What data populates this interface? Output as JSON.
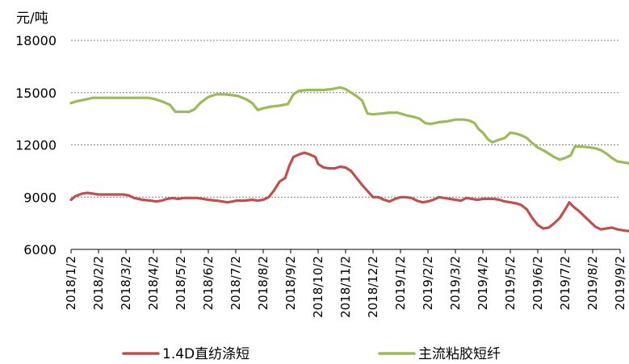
{
  "chart_data": {
    "type": "line",
    "unit_label": "元/吨",
    "ylim": [
      6000,
      18000
    ],
    "yticks": [
      6000,
      9000,
      12000,
      15000,
      18000
    ],
    "grid": true,
    "legend_position": "bottom",
    "xticks": [
      "2018/1/2",
      "2018/2/2",
      "2018/3/2",
      "2018/4/2",
      "2018/5/2",
      "2018/6/2",
      "2018/7/2",
      "2018/8/2",
      "2018/9/2",
      "2018/10/2",
      "2018/11/2",
      "2018/12/2",
      "2019/1/2",
      "2019/2/2",
      "2019/3/2",
      "2019/4/2",
      "2019/5/2",
      "2019/6/2",
      "2019/7/2",
      "2019/8/2",
      "2019/9/2"
    ],
    "series": [
      {
        "name": "1.4D直纺涤短",
        "color": "#c0504d",
        "points": [
          [
            0,
            8850
          ],
          [
            0.15,
            9050
          ],
          [
            0.4,
            9200
          ],
          [
            0.6,
            9250
          ],
          [
            0.8,
            9200
          ],
          [
            1,
            9150
          ],
          [
            1.3,
            9150
          ],
          [
            1.6,
            9150
          ],
          [
            1.9,
            9150
          ],
          [
            2.1,
            9100
          ],
          [
            2.3,
            8950
          ],
          [
            2.6,
            8850
          ],
          [
            2.9,
            8800
          ],
          [
            3.1,
            8750
          ],
          [
            3.3,
            8800
          ],
          [
            3.5,
            8900
          ],
          [
            3.7,
            8950
          ],
          [
            3.9,
            8900
          ],
          [
            4.1,
            8950
          ],
          [
            4.3,
            8950
          ],
          [
            4.6,
            8950
          ],
          [
            4.8,
            8900
          ],
          [
            5.0,
            8850
          ],
          [
            5.3,
            8800
          ],
          [
            5.5,
            8750
          ],
          [
            5.7,
            8700
          ],
          [
            5.9,
            8750
          ],
          [
            6.0,
            8800
          ],
          [
            6.3,
            8800
          ],
          [
            6.6,
            8850
          ],
          [
            6.8,
            8800
          ],
          [
            7.0,
            8850
          ],
          [
            7.2,
            9000
          ],
          [
            7.4,
            9400
          ],
          [
            7.6,
            9900
          ],
          [
            7.8,
            10100
          ],
          [
            7.95,
            10800
          ],
          [
            8.1,
            11300
          ],
          [
            8.3,
            11450
          ],
          [
            8.5,
            11550
          ],
          [
            8.7,
            11450
          ],
          [
            8.9,
            11300
          ],
          [
            9.0,
            10900
          ],
          [
            9.2,
            10700
          ],
          [
            9.4,
            10650
          ],
          [
            9.6,
            10650
          ],
          [
            9.8,
            10750
          ],
          [
            10.0,
            10700
          ],
          [
            10.2,
            10500
          ],
          [
            10.4,
            10100
          ],
          [
            10.6,
            9700
          ],
          [
            10.8,
            9350
          ],
          [
            11.0,
            9000
          ],
          [
            11.2,
            9000
          ],
          [
            11.4,
            8850
          ],
          [
            11.6,
            8750
          ],
          [
            11.8,
            8900
          ],
          [
            12.0,
            9000
          ],
          [
            12.2,
            9000
          ],
          [
            12.4,
            8950
          ],
          [
            12.6,
            8800
          ],
          [
            12.8,
            8700
          ],
          [
            13.0,
            8750
          ],
          [
            13.2,
            8850
          ],
          [
            13.4,
            9000
          ],
          [
            13.6,
            8950
          ],
          [
            13.8,
            8900
          ],
          [
            14.0,
            8850
          ],
          [
            14.2,
            8800
          ],
          [
            14.4,
            8950
          ],
          [
            14.6,
            8900
          ],
          [
            14.8,
            8850
          ],
          [
            15.0,
            8900
          ],
          [
            15.2,
            8900
          ],
          [
            15.4,
            8900
          ],
          [
            15.6,
            8850
          ],
          [
            15.8,
            8750
          ],
          [
            16.0,
            8700
          ],
          [
            16.2,
            8650
          ],
          [
            16.4,
            8550
          ],
          [
            16.6,
            8300
          ],
          [
            16.8,
            7800
          ],
          [
            17.0,
            7400
          ],
          [
            17.2,
            7200
          ],
          [
            17.4,
            7250
          ],
          [
            17.6,
            7500
          ],
          [
            17.8,
            7800
          ],
          [
            18.0,
            8300
          ],
          [
            18.15,
            8700
          ],
          [
            18.3,
            8450
          ],
          [
            18.5,
            8200
          ],
          [
            18.7,
            7900
          ],
          [
            18.9,
            7600
          ],
          [
            19.1,
            7300
          ],
          [
            19.3,
            7150
          ],
          [
            19.5,
            7200
          ],
          [
            19.7,
            7250
          ],
          [
            19.9,
            7150
          ],
          [
            20.1,
            7100
          ],
          [
            20.3,
            7050
          ],
          [
            20.5,
            7200
          ]
        ]
      },
      {
        "name": "主流粘胶短纤",
        "color": "#9bbb59",
        "points": [
          [
            0,
            14400
          ],
          [
            0.2,
            14500
          ],
          [
            0.5,
            14600
          ],
          [
            0.8,
            14700
          ],
          [
            1.2,
            14700
          ],
          [
            1.6,
            14700
          ],
          [
            2.0,
            14700
          ],
          [
            2.4,
            14700
          ],
          [
            2.8,
            14700
          ],
          [
            3.0,
            14650
          ],
          [
            3.3,
            14500
          ],
          [
            3.6,
            14300
          ],
          [
            3.8,
            13900
          ],
          [
            4.0,
            13900
          ],
          [
            4.3,
            13900
          ],
          [
            4.5,
            14050
          ],
          [
            4.7,
            14400
          ],
          [
            5.0,
            14750
          ],
          [
            5.3,
            14900
          ],
          [
            5.6,
            14900
          ],
          [
            5.9,
            14850
          ],
          [
            6.1,
            14800
          ],
          [
            6.4,
            14600
          ],
          [
            6.6,
            14400
          ],
          [
            6.8,
            14000
          ],
          [
            7.0,
            14100
          ],
          [
            7.3,
            14200
          ],
          [
            7.6,
            14250
          ],
          [
            7.9,
            14350
          ],
          [
            8.1,
            14900
          ],
          [
            8.3,
            15100
          ],
          [
            8.6,
            15150
          ],
          [
            8.9,
            15150
          ],
          [
            9.2,
            15150
          ],
          [
            9.5,
            15200
          ],
          [
            9.8,
            15300
          ],
          [
            10.0,
            15200
          ],
          [
            10.2,
            15000
          ],
          [
            10.4,
            14800
          ],
          [
            10.6,
            14550
          ],
          [
            10.8,
            13800
          ],
          [
            11.0,
            13750
          ],
          [
            11.3,
            13800
          ],
          [
            11.6,
            13850
          ],
          [
            11.9,
            13850
          ],
          [
            12.2,
            13700
          ],
          [
            12.5,
            13600
          ],
          [
            12.7,
            13500
          ],
          [
            12.9,
            13250
          ],
          [
            13.1,
            13200
          ],
          [
            13.4,
            13300
          ],
          [
            13.7,
            13350
          ],
          [
            14.0,
            13450
          ],
          [
            14.3,
            13450
          ],
          [
            14.5,
            13400
          ],
          [
            14.7,
            13250
          ],
          [
            14.85,
            12900
          ],
          [
            15.0,
            12700
          ],
          [
            15.2,
            12300
          ],
          [
            15.35,
            12150
          ],
          [
            15.6,
            12300
          ],
          [
            15.8,
            12400
          ],
          [
            16.0,
            12700
          ],
          [
            16.2,
            12650
          ],
          [
            16.4,
            12550
          ],
          [
            16.6,
            12400
          ],
          [
            16.8,
            12100
          ],
          [
            17.0,
            11850
          ],
          [
            17.3,
            11600
          ],
          [
            17.6,
            11300
          ],
          [
            17.8,
            11150
          ],
          [
            18.0,
            11250
          ],
          [
            18.2,
            11400
          ],
          [
            18.35,
            11900
          ],
          [
            18.6,
            11900
          ],
          [
            18.9,
            11850
          ],
          [
            19.1,
            11800
          ],
          [
            19.3,
            11700
          ],
          [
            19.5,
            11500
          ],
          [
            19.7,
            11250
          ],
          [
            19.9,
            11050
          ],
          [
            20.1,
            11000
          ],
          [
            20.3,
            10950
          ],
          [
            20.5,
            10850
          ],
          [
            20.6,
            10750
          ]
        ]
      }
    ]
  }
}
